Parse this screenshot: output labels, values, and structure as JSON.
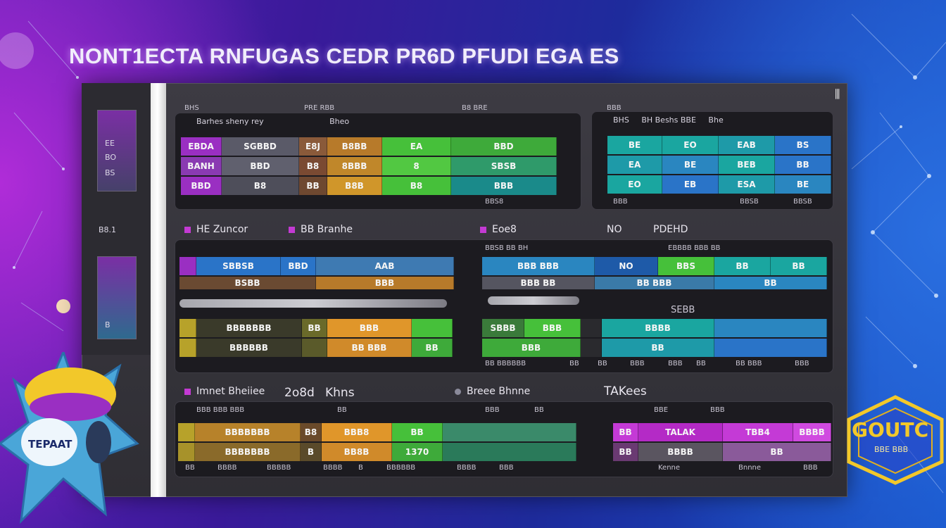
{
  "title": "NONT1ECTA  RNFUGAS CEDR PR6D PFUDI EGA ES",
  "sidebar": {
    "block1": [
      "EE",
      "BO",
      "BS"
    ],
    "label2": "B8.1",
    "block3": [
      "B"
    ]
  },
  "panel1": {
    "tabs": [
      "BHS",
      "PRE RBB",
      "B8 BRE"
    ],
    "header": [
      "Barhes sheny rey",
      "Bheo"
    ],
    "rows": [
      [
        "EBDA",
        "SGBBD",
        "E8J",
        "B8BB",
        "EA",
        "BBD"
      ],
      [
        "BANH",
        "BBD",
        "B8",
        "8BBB",
        "8",
        "SBSB"
      ],
      [
        "BBD",
        "B8",
        "BB",
        "B8B",
        "B8",
        "BBB"
      ]
    ],
    "footer": "BBS8"
  },
  "panel2": {
    "tab": "BBB",
    "header": [
      "BHS",
      "BH Beshs BBE",
      "Bhe"
    ],
    "rows": [
      [
        "BE",
        "EO",
        "EAB",
        "BS"
      ],
      [
        "EA",
        "BE",
        "BEB",
        "BB"
      ],
      [
        "EO",
        "EB",
        "ESA",
        "BE"
      ]
    ],
    "footer": [
      "BBB",
      "BBSB",
      "BBSB"
    ]
  },
  "section2": {
    "label": "HE Zuncor",
    "label_b": "BB Branhe",
    "label_c": "Eoe8",
    "label_d": "NO",
    "label_e": "PDEHD",
    "left_sub": "BBSB BB BH",
    "right_sub": "EBBBB BBB BB",
    "rows_left": [
      [
        "SBBSB",
        "BBD",
        "AAB"
      ],
      [
        "BSBB",
        "BBB"
      ]
    ],
    "rows_left2": [
      [
        "BBBBBBB",
        "BB",
        "BBB"
      ],
      [
        "BBBBBB",
        "BB BBB",
        "BB"
      ]
    ],
    "rows_right": [
      [
        "BBB BBB",
        "NO",
        "BBS",
        "BB",
        "BB"
      ],
      [
        "BBB BB",
        "BB BBB",
        "BB"
      ]
    ],
    "rows_right2": [
      [
        "SBBB",
        "BBB",
        "BBBB"
      ],
      [
        "BBB",
        "BB"
      ]
    ],
    "mid": "SEBB",
    "footer": [
      "BB BBBBBB",
      "BB",
      "BB",
      "BBB",
      "BBB",
      "BB",
      "BB BBB",
      "BBB"
    ]
  },
  "section3": {
    "label": "Imnet Bheiiee",
    "label_b": "2o8d",
    "label_c": "Khns",
    "label_d": "Breee Bhnne",
    "label_e": "TAKees",
    "sub": [
      "BBB BBB BBB",
      "BB",
      "BBB",
      "BB",
      "BBE",
      "BBB"
    ],
    "rows_left": [
      [
        "BBBBBBB",
        "B8",
        "BBB8",
        "BB"
      ],
      [
        "BBBBBBB",
        "B",
        "BB8B",
        "1370"
      ]
    ],
    "rows_right": [
      [
        "BB",
        "TALAK",
        "TBB4",
        "BBBB"
      ],
      [
        "BB",
        "BBBB",
        "BB"
      ]
    ],
    "footer": [
      "BB",
      "BBBB",
      "BBBBB",
      "BBBB",
      "B",
      "BBBBBB",
      "BBBB",
      "BBB"
    ],
    "footer_right": [
      "Kenne",
      "Bnnne",
      "BBB"
    ]
  },
  "mascot_text": "TEPAAT",
  "badge_text": [
    "GOUTC",
    "BBE BBB"
  ],
  "colors": {
    "purple": "#9a2fc2",
    "green": "#46c03a",
    "teal": "#1aa6a0",
    "orange": "#e0962a",
    "blue": "#2a74c8",
    "magenta": "#c43ad6"
  }
}
